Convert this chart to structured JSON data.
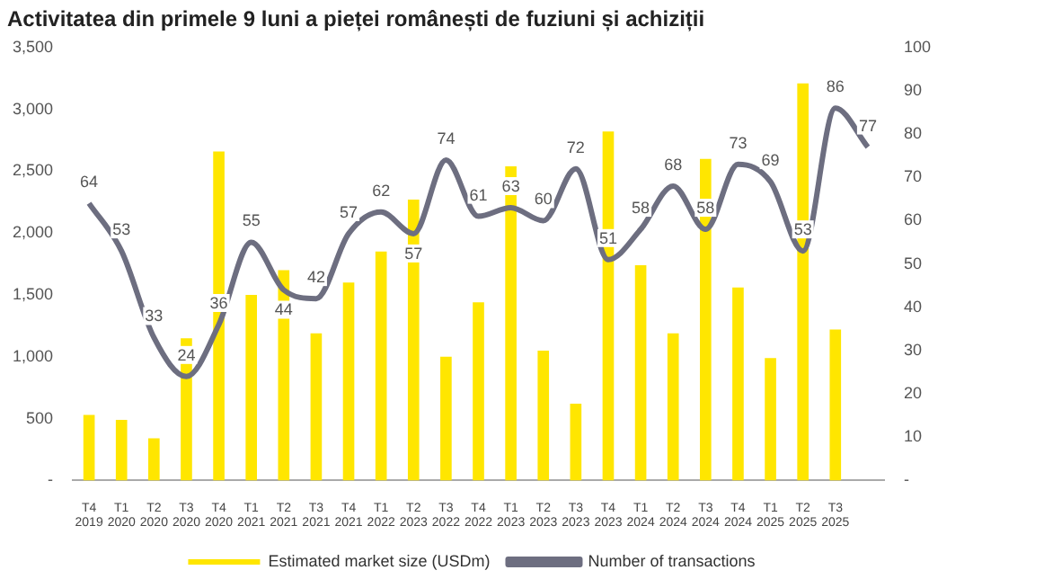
{
  "chart_data": {
    "type": "bar",
    "title": "Activitatea din primele 9 luni a pieței românești de fuziuni și achiziții",
    "categories": [
      "T4 2019",
      "T1 2020",
      "T2 2020",
      "T3 2020",
      "T4 2020",
      "T1 2021",
      "T2 2021",
      "T3 2021",
      "T4 2021",
      "T1 2022",
      "T2 2023",
      "T3 2022",
      "T4 2022",
      "T1 2023",
      "T2 2023",
      "T3 2023",
      "T4 2023",
      "T1 2024",
      "T2 2024",
      "T3 2024",
      "T4 2024",
      "T1 2025",
      "T2 2025",
      "T3 2025",
      null
    ],
    "series": [
      {
        "name": "Estimated market size (USDm)",
        "color": "#ffe600",
        "values": [
          530,
          490,
          340,
          1150,
          2660,
          1500,
          1700,
          1190,
          1600,
          1850,
          2270,
          1000,
          1440,
          2540,
          1050,
          620,
          2820,
          1740,
          1190,
          2600,
          1560,
          990,
          3210,
          1220,
          null
        ]
      },
      {
        "name": "Number of transactions",
        "type": "line",
        "axis": "y2",
        "color": "#6d6e80",
        "marker": "none",
        "values": [
          64,
          53,
          33,
          24,
          36,
          55,
          44,
          42,
          57,
          62,
          57,
          74,
          61,
          63,
          60,
          72,
          51,
          58,
          68,
          58,
          73,
          69,
          53,
          86,
          77
        ],
        "value_labels": [
          "64",
          "53",
          "33",
          "24",
          "36",
          "55",
          "44",
          "42",
          "57",
          "62",
          "57",
          "74",
          "61",
          "63",
          "60",
          "72",
          "51",
          "58",
          "68",
          "58",
          "73",
          "69",
          "53",
          "86",
          "77"
        ]
      }
    ],
    "ylim": [
      0,
      3500
    ],
    "yticks": [
      {
        "value": 0,
        "label": "-"
      },
      {
        "value": 500,
        "label": "500"
      },
      {
        "value": 1000,
        "label": "1,000"
      },
      {
        "value": 1500,
        "label": "1,500"
      },
      {
        "value": 2000,
        "label": "2,000"
      },
      {
        "value": 2500,
        "label": "2,500"
      },
      {
        "value": 3000,
        "label": "3,000"
      },
      {
        "value": 3500,
        "label": "3,500"
      }
    ],
    "y2lim": [
      0,
      100
    ],
    "y2ticks": [
      {
        "value": 0,
        "label": "-"
      },
      10,
      20,
      30,
      40,
      50,
      60,
      70,
      80,
      90,
      100
    ],
    "grid": false,
    "legend": "bottom"
  }
}
